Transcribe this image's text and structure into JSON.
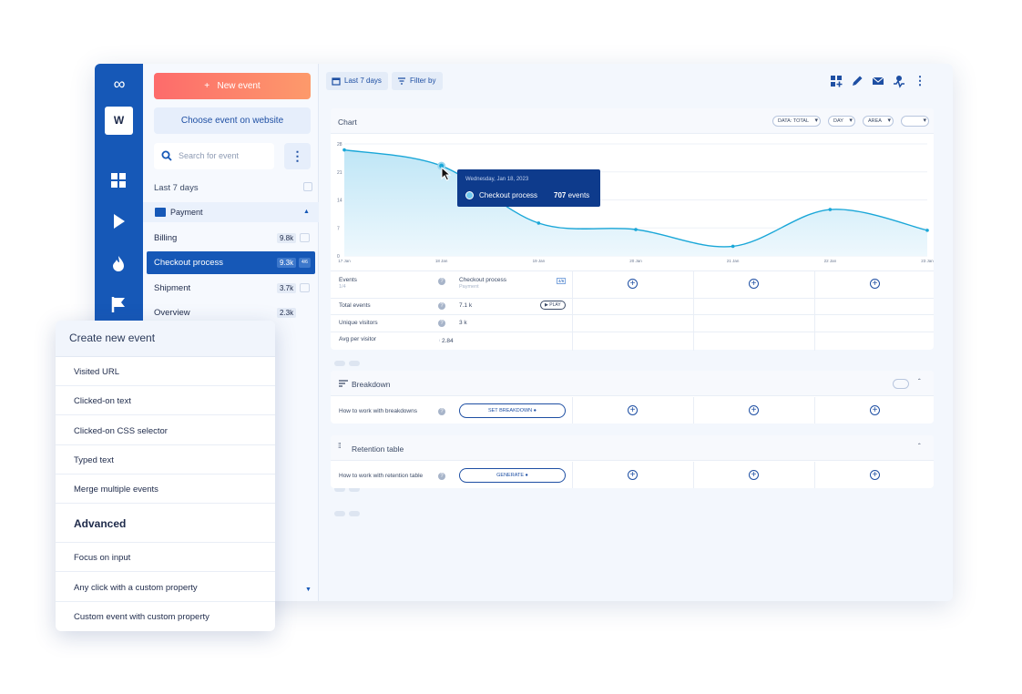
{
  "sidebar": {
    "workspace_initial": "W",
    "new_event": "New event",
    "choose_event": "Choose event on website",
    "search_placeholder": "Search for event",
    "date_range": "Last 7 days",
    "folder": "Payment",
    "events": [
      {
        "name": "Billing",
        "count": "9.8k"
      },
      {
        "name": "Checkout process",
        "count": "9.3k",
        "tag": "4/6"
      },
      {
        "name": "Shipment",
        "count": "3.7k"
      },
      {
        "name": "Overview",
        "count": "2.3k"
      }
    ]
  },
  "toolbar": {
    "date_button": "Last 7 days",
    "filter_button": "Filter by"
  },
  "chart_card": {
    "title": "Chart",
    "controls": [
      "DATA: TOTAL",
      "DAY",
      "AREA",
      ""
    ]
  },
  "chart_data": {
    "type": "area",
    "x": [
      "17 Jan",
      "18 Jan",
      "19 Jan",
      "20 Jan",
      "21 Jan",
      "22 Jan",
      "23 Jan"
    ],
    "yticks": [
      "28",
      "21",
      "14",
      "7",
      "0"
    ],
    "ylim": [
      0,
      28
    ],
    "series": [
      {
        "values": [
          26.5,
          22.5,
          8.2,
          6.6,
          2.4,
          11.6,
          6.4
        ]
      }
    ],
    "color": "#1aa7d8",
    "tooltip": {
      "date": "Wednesday, Jan 18, 2023",
      "series": "Checkout process",
      "value": "707",
      "unit": "events"
    }
  },
  "events_table": {
    "events_label": "Events",
    "events_sub": "1/4",
    "event_name": "Checkout process",
    "event_sub": "Payment",
    "event_tag": "4/6",
    "rows": [
      {
        "label": "Total events",
        "value": "7.1 k",
        "action": "PLAY"
      },
      {
        "label": "Unique visitors",
        "value": "3 k"
      },
      {
        "label": "Avg per visitor",
        "value": "2.84"
      }
    ]
  },
  "breakdown": {
    "title": "Breakdown",
    "row_label": "How to work with breakdowns",
    "button": "SET BREAKDOWN"
  },
  "retention": {
    "title": "Retention table",
    "row_label": "How to work with retention table",
    "button": "GENERATE"
  },
  "popup": {
    "title": "Create new event",
    "items": [
      "Visited URL",
      "Clicked-on text",
      "Clicked-on CSS selector",
      "Typed text",
      "Merge multiple events"
    ],
    "section": "Advanced",
    "advanced_items": [
      "Focus on input",
      "Any click with a custom property",
      "Custom event with custom property"
    ]
  }
}
